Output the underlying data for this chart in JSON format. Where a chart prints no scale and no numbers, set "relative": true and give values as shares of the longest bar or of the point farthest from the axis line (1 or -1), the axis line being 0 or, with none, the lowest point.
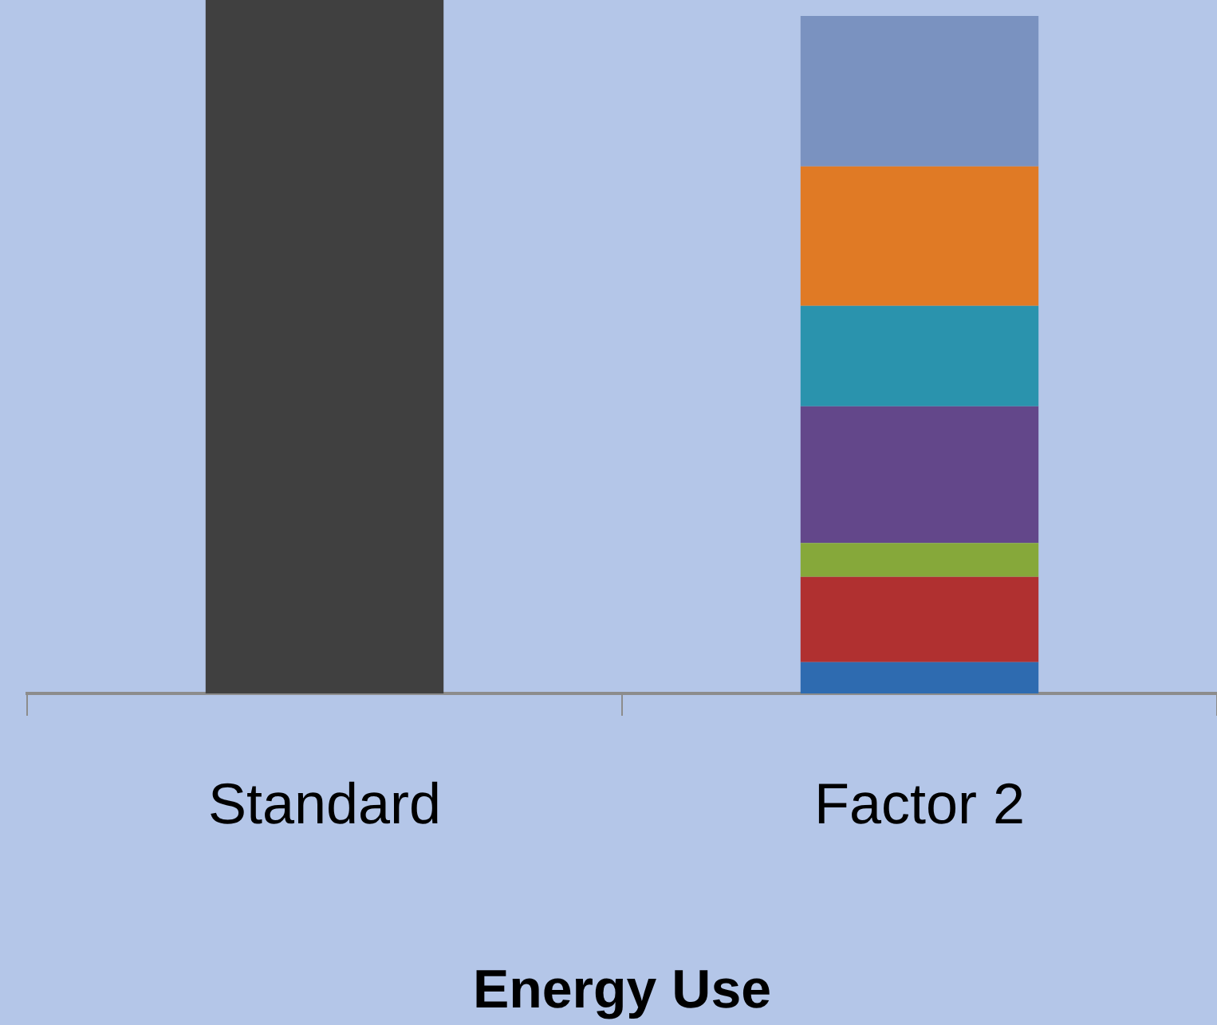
{
  "chart_data": {
    "type": "bar",
    "xlabel": "Energy Use",
    "categories": [
      "Standard",
      "Factor 2"
    ],
    "stacked": true,
    "relative": true,
    "grid": false,
    "legend": false,
    "series": [
      {
        "color": "#404040",
        "values": [
          1,
          null
        ]
      },
      {
        "color": "#2e6bb0",
        "values": [
          null,
          0.045
        ]
      },
      {
        "color": "#b03030",
        "values": [
          null,
          0.123
        ]
      },
      {
        "color": "#86a83a",
        "values": [
          null,
          0.049
        ]
      },
      {
        "color": "#63478a",
        "values": [
          null,
          0.197
        ]
      },
      {
        "color": "#2a93ad",
        "values": [
          null,
          0.145
        ]
      },
      {
        "color": "#e07a25",
        "values": [
          null,
          0.201
        ]
      },
      {
        "color": "#7a92c0",
        "values": [
          null,
          0.217
        ]
      }
    ]
  }
}
